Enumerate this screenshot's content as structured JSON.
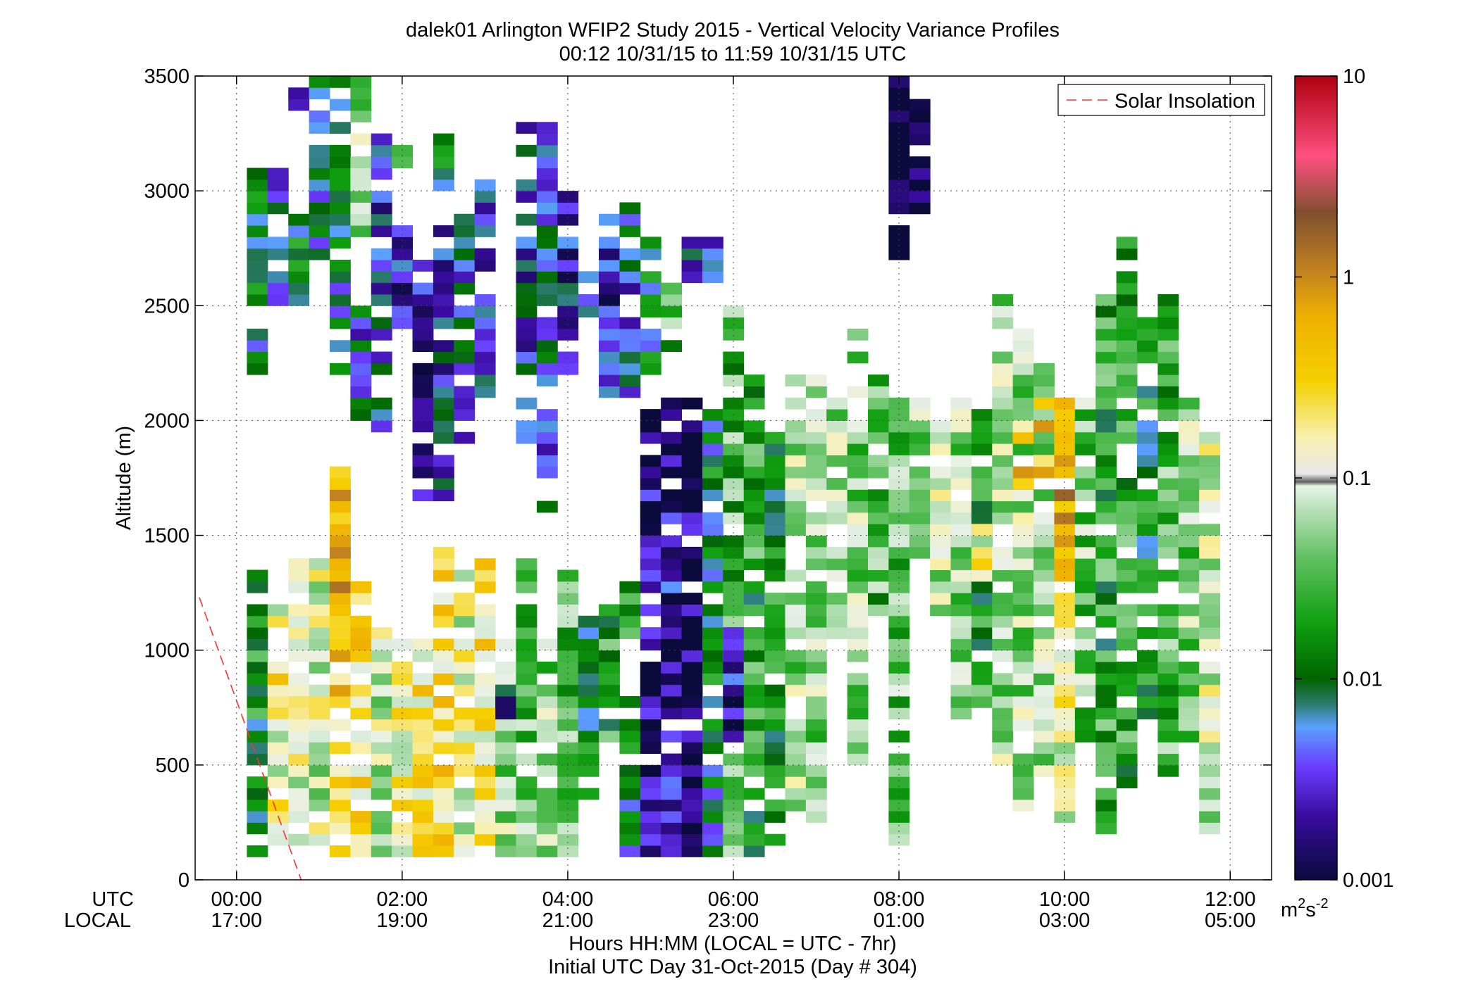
{
  "chart_data": {
    "type": "heatmap",
    "title": "dalek01 Arlington WFIP2 Study 2015 - Vertical Velocity Variance Profiles",
    "subtitle": "00:12 10/31/15 to 11:59 10/31/15  UTC",
    "ylabel": "Altitude (m)",
    "xlabel": "Hours HH:MM  (LOCAL = UTC - 7hr)",
    "xlabel2": "Initial UTC Day 31-Oct-2015 (Day # 304)",
    "xlim": [
      -0.5,
      12.5
    ],
    "ylim": [
      0,
      3500
    ],
    "grid": true,
    "row_labels": [
      "UTC",
      "LOCAL"
    ],
    "x_ticks": [
      0,
      2,
      4,
      6,
      8,
      10,
      12
    ],
    "x_tick_labels_utc": [
      "00:00",
      "02:00",
      "04:00",
      "06:00",
      "08:00",
      "10:00",
      "12:00"
    ],
    "x_tick_labels_local": [
      "17:00",
      "19:00",
      "21:00",
      "23:00",
      "01:00",
      "03:00",
      "05:00"
    ],
    "y_ticks": [
      0,
      500,
      1000,
      1500,
      2000,
      2500,
      3000,
      3500
    ],
    "y_tick_labels": [
      "0",
      "500",
      "1000",
      "1500",
      "2000",
      "2500",
      "3000",
      "3500"
    ],
    "legend": {
      "placement": "top-right",
      "entries": [
        {
          "name": "Solar Insolation",
          "color": "#ff3030",
          "style": "dashed"
        }
      ]
    },
    "solar_insolation_line": {
      "x": [
        -0.45,
        0.78
      ],
      "y": [
        1230,
        0
      ]
    },
    "colorbar": {
      "scale": "log",
      "range": [
        0.001,
        10
      ],
      "tick_values": [
        0.001,
        0.01,
        0.1,
        1,
        10
      ],
      "tick_labels": [
        "0.001",
        "0.01",
        "0.1",
        "1",
        "10"
      ],
      "unit": "m²s⁻²",
      "unit_base": "m",
      "unit_sup1": "2",
      "unit_mid": "s",
      "unit_sup2": "-2"
    },
    "cell_size": {
      "time_hours": 0.25,
      "altitude_m": 50
    },
    "value_note": "each column: [time_hour, [[altitude_from_m, altitude_to_m, variance_m2s-2], ...]]",
    "columns": [
      [
        0.25,
        [
          [
            100,
            1350,
            0.015
          ],
          [
            2200,
            3100,
            0.009
          ]
        ]
      ],
      [
        0.5,
        [
          [
            100,
            1200,
            0.12
          ],
          [
            650,
            1000,
            0.25
          ],
          [
            2500,
            2800,
            0.008
          ],
          [
            2900,
            3100,
            0.006
          ]
        ]
      ],
      [
        0.75,
        [
          [
            100,
            1400,
            0.1
          ],
          [
            600,
            900,
            0.2
          ],
          [
            2500,
            2900,
            0.012
          ],
          [
            3350,
            3500,
            0.003
          ]
        ]
      ],
      [
        1.0,
        [
          [
            100,
            1400,
            0.09
          ],
          [
            2700,
            3500,
            0.008
          ]
        ]
      ],
      [
        1.25,
        [
          [
            100,
            1800,
            0.3
          ],
          [
            1000,
            1800,
            0.6
          ],
          [
            2200,
            3500,
            0.01
          ]
        ]
      ],
      [
        1.5,
        [
          [
            100,
            1300,
            0.25
          ],
          [
            2000,
            2500,
            0.006
          ],
          [
            2800,
            3500,
            0.05
          ]
        ]
      ],
      [
        1.75,
        [
          [
            100,
            1100,
            0.08
          ],
          [
            1950,
            3250,
            0.004
          ]
        ]
      ],
      [
        2.0,
        [
          [
            100,
            1050,
            0.15
          ],
          [
            2400,
            2850,
            0.003
          ],
          [
            3100,
            3200,
            0.02
          ]
        ]
      ],
      [
        2.25,
        [
          [
            100,
            1050,
            0.2
          ],
          [
            1650,
            2750,
            0.002
          ]
        ]
      ],
      [
        2.5,
        [
          [
            100,
            1450,
            0.25
          ],
          [
            1650,
            2850,
            0.004
          ],
          [
            3000,
            3250,
            0.01
          ]
        ]
      ],
      [
        2.75,
        [
          [
            100,
            1350,
            0.12
          ],
          [
            1900,
            2900,
            0.005
          ]
        ]
      ],
      [
        3.0,
        [
          [
            100,
            1400,
            0.2
          ],
          [
            2100,
            3100,
            0.004
          ]
        ]
      ],
      [
        3.25,
        [
          [
            100,
            1100,
            0.06
          ],
          [
            700,
            850,
            0.003
          ]
        ]
      ],
      [
        3.5,
        [
          [
            100,
            1400,
            0.04
          ],
          [
            1900,
            3300,
            0.004
          ]
        ]
      ],
      [
        3.75,
        [
          [
            100,
            1050,
            0.05
          ],
          [
            1600,
            3300,
            0.006
          ]
        ]
      ],
      [
        4.0,
        [
          [
            100,
            1350,
            0.03
          ],
          [
            2200,
            3000,
            0.003
          ]
        ]
      ],
      [
        4.25,
        [
          [
            350,
            1150,
            0.015
          ],
          [
            2450,
            2650,
            0.01
          ]
        ]
      ],
      [
        4.5,
        [
          [
            500,
            1200,
            0.02
          ],
          [
            2100,
            2900,
            0.003
          ]
        ]
      ],
      [
        4.75,
        [
          [
            100,
            800,
            0.01
          ],
          [
            1000,
            1300,
            0.03
          ],
          [
            2100,
            3000,
            0.005
          ]
        ]
      ],
      [
        5.0,
        [
          [
            100,
            2100,
            0.0015
          ],
          [
            2200,
            2800,
            0.01
          ]
        ]
      ],
      [
        5.25,
        [
          [
            100,
            2100,
            0.002
          ],
          [
            2300,
            2600,
            0.03
          ]
        ]
      ],
      [
        5.5,
        [
          [
            100,
            2100,
            0.0012
          ],
          [
            2600,
            2800,
            0.004
          ]
        ]
      ],
      [
        5.75,
        [
          [
            100,
            2050,
            0.01
          ],
          [
            2600,
            2800,
            0.003
          ]
        ]
      ],
      [
        6.0,
        [
          [
            100,
            2500,
            0.03
          ],
          [
            600,
            1100,
            0.002
          ]
        ]
      ],
      [
        6.25,
        [
          [
            100,
            2200,
            0.02
          ]
        ]
      ],
      [
        6.5,
        [
          [
            150,
            2000,
            0.015
          ]
        ]
      ],
      [
        6.75,
        [
          [
            300,
            2200,
            0.06
          ]
        ]
      ],
      [
        7.0,
        [
          [
            200,
            2200,
            0.05
          ]
        ]
      ],
      [
        7.25,
        [
          [
            1050,
            2100,
            0.06
          ]
        ]
      ],
      [
        7.5,
        [
          [
            500,
            2400,
            0.05
          ]
        ]
      ],
      [
        7.75,
        [
          [
            1150,
            2200,
            0.03
          ]
        ]
      ],
      [
        8.0,
        [
          [
            150,
            2100,
            0.04
          ],
          [
            2700,
            3500,
            0.001
          ]
        ]
      ],
      [
        8.25,
        [
          [
            1400,
            2100,
            0.06
          ],
          [
            2900,
            3400,
            0.001
          ]
        ]
      ],
      [
        8.5,
        [
          [
            1150,
            2000,
            0.07
          ]
        ]
      ],
      [
        8.75,
        [
          [
            700,
            2100,
            0.05
          ]
        ]
      ],
      [
        9.0,
        [
          [
            750,
            2050,
            0.02
          ],
          [
            1300,
            1550,
            0.12
          ]
        ]
      ],
      [
        9.25,
        [
          [
            500,
            2550,
            0.06
          ]
        ]
      ],
      [
        9.5,
        [
          [
            300,
            2400,
            0.06
          ],
          [
            1650,
            2100,
            0.4
          ]
        ]
      ],
      [
        9.75,
        [
          [
            450,
            2300,
            0.05
          ],
          [
            1750,
            2100,
            0.5
          ]
        ]
      ],
      [
        10.0,
        [
          [
            250,
            2100,
            0.12
          ],
          [
            1300,
            2100,
            0.6
          ]
        ]
      ],
      [
        10.25,
        [
          [
            600,
            2100,
            0.04
          ]
        ]
      ],
      [
        10.5,
        [
          [
            200,
            2550,
            0.02
          ]
        ]
      ],
      [
        10.75,
        [
          [
            400,
            2800,
            0.02
          ]
        ]
      ],
      [
        11.0,
        [
          [
            700,
            2450,
            0.015
          ]
        ]
      ],
      [
        11.25,
        [
          [
            450,
            2550,
            0.03
          ]
        ]
      ],
      [
        11.5,
        [
          [
            600,
            2100,
            0.05
          ]
        ]
      ],
      [
        11.75,
        [
          [
            200,
            1950,
            0.08
          ]
        ]
      ]
    ]
  }
}
